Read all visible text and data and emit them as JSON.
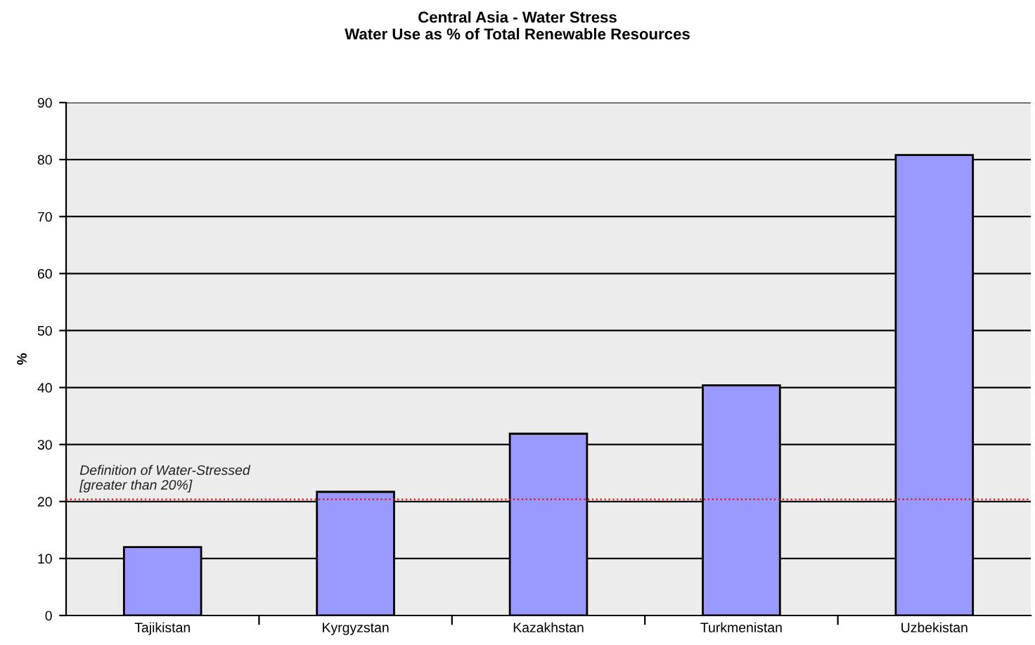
{
  "chart_data": {
    "type": "bar",
    "title": "Central Asia - Water Stress\nWater Use as % of Total Renewable Resources",
    "ylabel": "%",
    "categories": [
      "Tajikistan",
      "Kyrgyzstan",
      "Kazakhstan",
      "Turkmenistan",
      "Uzbekistan"
    ],
    "values": [
      12,
      21.7,
      31.9,
      40.4,
      80.8
    ],
    "color": "#9999ff",
    "ylim": [
      0,
      90
    ],
    "yticks": [
      0,
      10,
      20,
      30,
      40,
      50,
      60,
      70,
      80,
      90
    ],
    "grid": "y",
    "legend": false,
    "ref_lines": [
      {
        "axis": "y",
        "value": 20.4,
        "label": "Definition of Water-Stressed\n[greater than 20%]",
        "color": "#ff0000",
        "line_style": "dotted"
      }
    ]
  }
}
